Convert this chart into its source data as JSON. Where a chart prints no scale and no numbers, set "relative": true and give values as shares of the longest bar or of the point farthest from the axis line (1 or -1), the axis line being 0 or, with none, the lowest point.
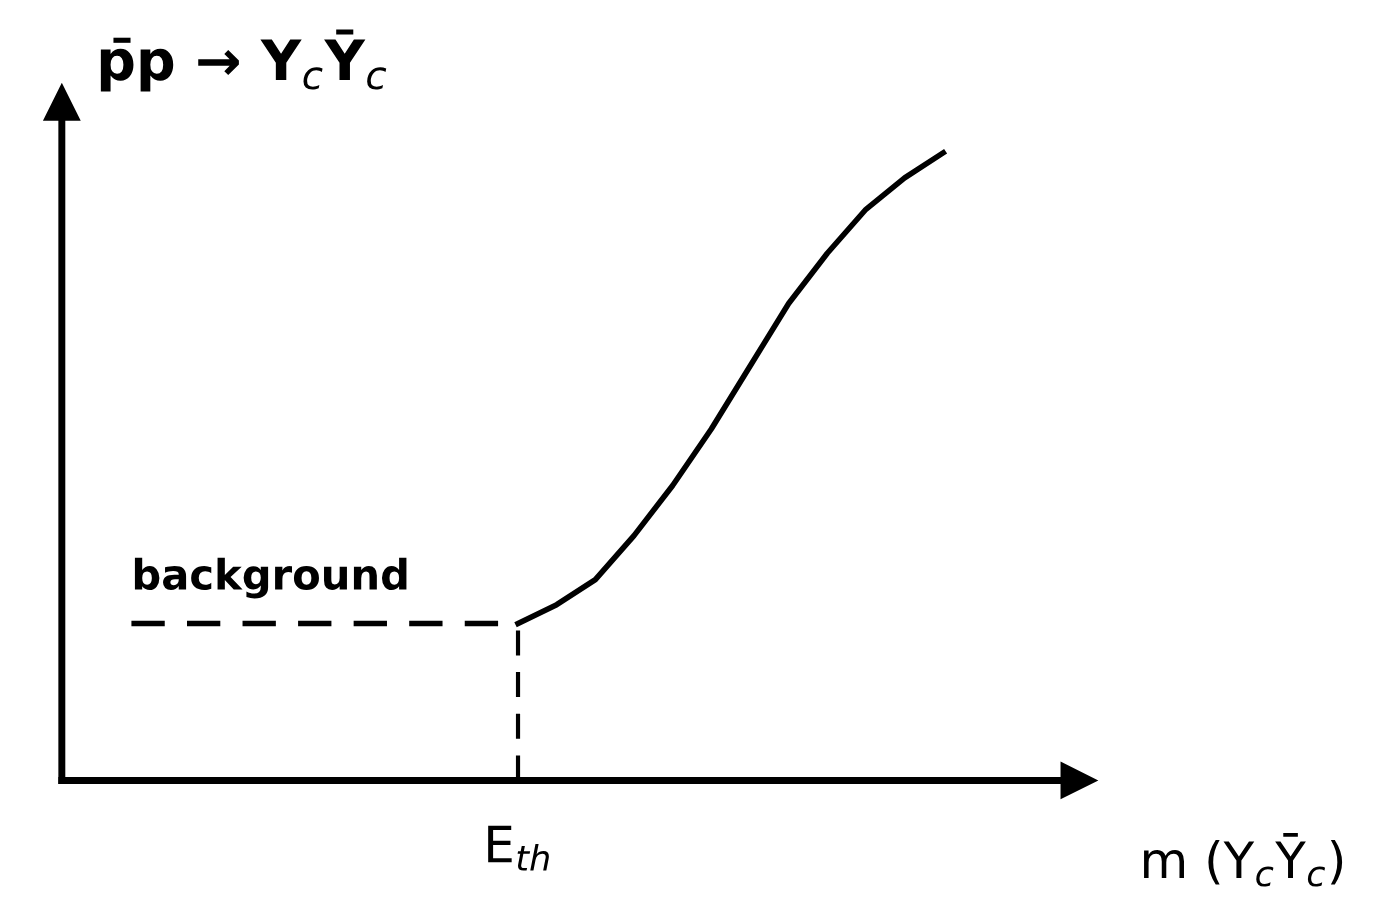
{
  "chart_data": {
    "type": "line",
    "title": "p̄p → Y$_{c}$Ȳ$_{c}$",
    "xlabel": "m (Y$_{c}$Ȳ$_{c}$)",
    "relative": true,
    "categories": [
      null,
      null,
      null,
      null,
      null,
      null,
      null,
      null,
      null,
      null,
      null,
      null,
      null,
      null,
      null,
      null,
      null,
      null,
      null,
      null,
      null,
      null
    ],
    "annotations": [
      "E$_{th}$"
    ],
    "series": [
      {
        "name": "background",
        "color": "#000000",
        "line_style": "dashed",
        "values": [
          0.25,
          0.25,
          0.25,
          0.25,
          0.25,
          0.25,
          0.25,
          0.25,
          0.25,
          0.25,
          0.25,
          null,
          null,
          null,
          null,
          null,
          null,
          null,
          null,
          null,
          null,
          null
        ]
      },
      {
        "color": "#000000",
        "line_style": "solid",
        "values": [
          null,
          null,
          null,
          null,
          null,
          null,
          null,
          null,
          null,
          null,
          0.25,
          0.28,
          0.32,
          0.39,
          0.47,
          0.56,
          0.66,
          0.76,
          0.84,
          0.91,
          0.96,
          1.0
        ]
      }
    ],
    "marker": "none"
  }
}
